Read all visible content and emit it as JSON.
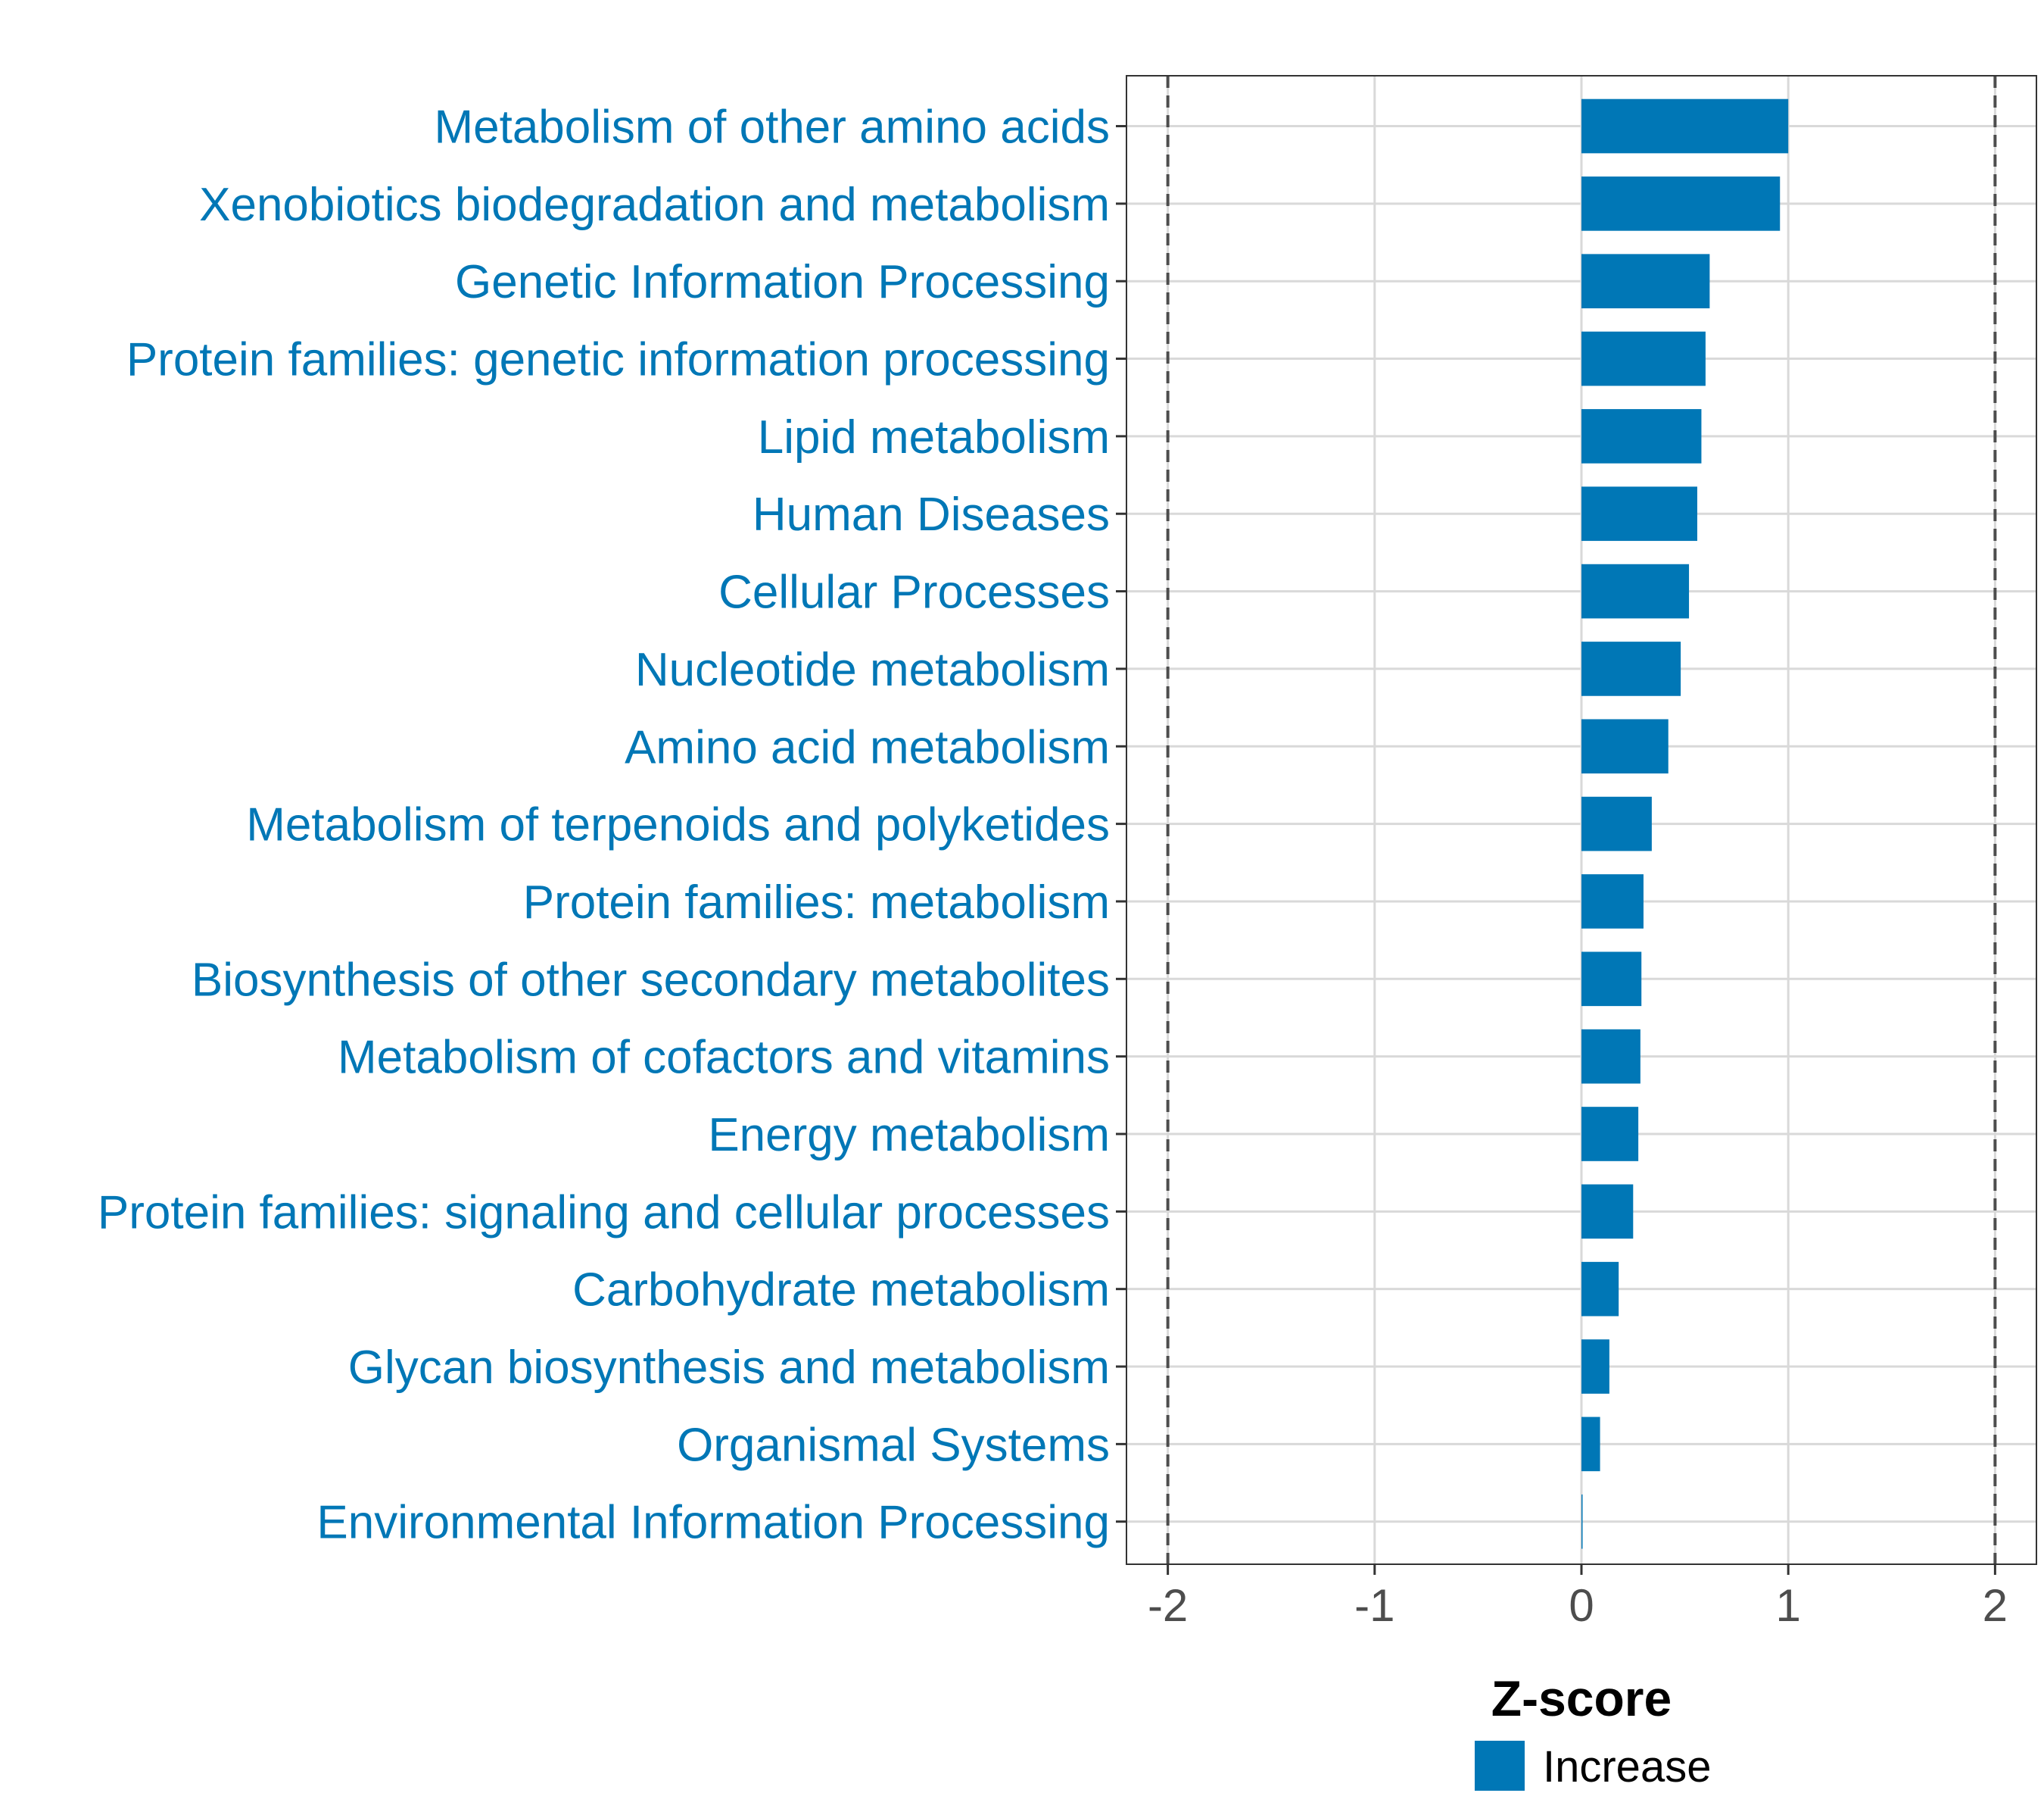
{
  "chart_data": {
    "type": "bar",
    "orientation": "horizontal",
    "categories": [
      "Metabolism of other amino acids",
      "Xenobiotics biodegradation and metabolism",
      "Genetic Information Processing",
      "Protein families: genetic information processing",
      "Lipid metabolism",
      "Human Diseases",
      "Cellular Processes",
      "Nucleotide metabolism",
      "Amino acid metabolism",
      "Metabolism of terpenoids and polyketides",
      "Protein families: metabolism",
      "Biosynthesis of other secondary metabolites",
      "Metabolism of cofactors and vitamins",
      "Energy metabolism",
      "Protein families: signaling and cellular processes",
      "Carbohydrate metabolism",
      "Glycan biosynthesis and metabolism",
      "Organismal Systems",
      "Environmental Information Processing"
    ],
    "values": [
      1.0,
      0.96,
      0.62,
      0.6,
      0.58,
      0.56,
      0.52,
      0.48,
      0.42,
      0.34,
      0.3,
      0.29,
      0.285,
      0.275,
      0.25,
      0.18,
      0.135,
      0.09,
      0.005
    ],
    "xlabel": "Z-score",
    "ylabel": "",
    "xlim": [
      -2.2,
      2.2
    ],
    "xticks": [
      -2,
      -1,
      0,
      1,
      2
    ],
    "xtick_labels": [
      "-2",
      "-1",
      "0",
      "1",
      "2"
    ],
    "threshold_lines": [
      -2,
      2
    ],
    "grid": true,
    "legend": {
      "position": "bottom",
      "entries": [
        {
          "label": "Increase",
          "color": "#0077b6"
        }
      ]
    },
    "colors": {
      "bar": "#0077b6",
      "label": "#0077b6",
      "grid": "#d9d9d9",
      "threshold": "#4d4d4d"
    }
  }
}
